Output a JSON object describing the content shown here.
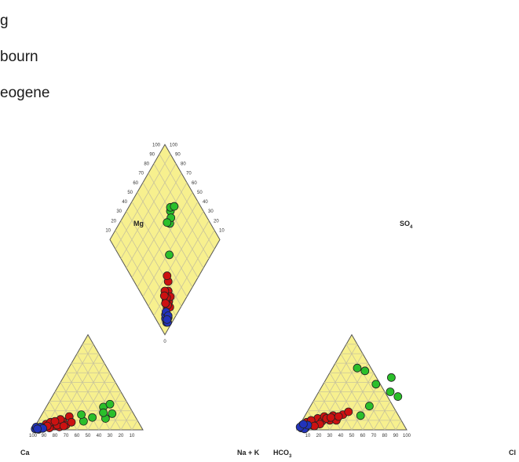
{
  "chart_data": {
    "type": "scatter",
    "legend": [
      "g",
      "bourn",
      "eogene"
    ],
    "colors": {
      "green": "#2bbf2b",
      "red": "#cc1111",
      "blue": "#2233bb",
      "field": "#f7f08e",
      "grid": "#c9c49b"
    },
    "ticks": [
      "10",
      "20",
      "30",
      "40",
      "50",
      "60",
      "70",
      "80",
      "90",
      "100"
    ],
    "zero": "0",
    "axis_labels": {
      "mg": "Mg",
      "so4": "SO",
      "so4_sub": "4",
      "ca": "Ca",
      "nak": "Na + K",
      "hco3": "HCO",
      "hco3_sub": "3",
      "cl": "Cl"
    },
    "cation_units": "Na+K %, Mg %",
    "cation": {
      "green": [
        [
          64,
          24
        ],
        [
          72,
          17
        ],
        [
          66,
          12
        ],
        [
          54,
          13
        ],
        [
          46,
          9
        ],
        [
          64,
          18
        ],
        [
          44,
          16
        ],
        [
          70,
          27
        ]
      ],
      "red": [
        [
          10,
          3
        ],
        [
          14,
          5
        ],
        [
          17,
          6
        ],
        [
          19,
          4
        ],
        [
          21,
          7
        ],
        [
          24,
          3
        ],
        [
          27,
          9
        ],
        [
          30,
          5
        ],
        [
          33,
          14
        ],
        [
          12,
          6
        ],
        [
          15,
          2
        ],
        [
          22,
          5
        ],
        [
          25,
          11
        ],
        [
          28,
          4
        ],
        [
          16,
          8
        ],
        [
          35,
          8
        ],
        [
          20,
          9
        ],
        [
          13,
          4
        ]
      ],
      "blue": [
        [
          2,
          1
        ],
        [
          4,
          2
        ],
        [
          6,
          1.5
        ],
        [
          8,
          2.5
        ],
        [
          3,
          3
        ],
        [
          5,
          0.5
        ],
        [
          7,
          3
        ],
        [
          9,
          1.5
        ],
        [
          4,
          1
        ]
      ]
    },
    "anion_units": "Cl %, SO4 %",
    "anion": {
      "green": [
        [
          92,
          35
        ],
        [
          85,
          40
        ],
        [
          72,
          48
        ],
        [
          62,
          62
        ],
        [
          55,
          65
        ],
        [
          66,
          25
        ],
        [
          58,
          15
        ],
        [
          86,
          55
        ]
      ],
      "red": [
        [
          8,
          4
        ],
        [
          11,
          6
        ],
        [
          14,
          5
        ],
        [
          17,
          8
        ],
        [
          19,
          12
        ],
        [
          23,
          9
        ],
        [
          25,
          14
        ],
        [
          30,
          10
        ],
        [
          33,
          15
        ],
        [
          36,
          10
        ],
        [
          42,
          16
        ],
        [
          9,
          8
        ],
        [
          13,
          10
        ],
        [
          21,
          6
        ],
        [
          27,
          12
        ],
        [
          47,
          19
        ],
        [
          16,
          4
        ],
        [
          31,
          13
        ],
        [
          38,
          14
        ]
      ],
      "blue": [
        [
          4,
          2
        ],
        [
          6,
          3
        ],
        [
          8,
          2
        ],
        [
          5,
          5
        ],
        [
          9,
          4
        ],
        [
          7,
          1
        ],
        [
          3,
          3
        ],
        [
          10,
          5
        ],
        [
          6,
          6
        ]
      ]
    },
    "diamond_units": "SO4+Cl %, Na+K %",
    "diamond": {
      "green": [
        [
          60,
          70
        ],
        [
          62,
          72
        ],
        [
          54,
          63
        ],
        [
          56,
          67
        ],
        [
          57,
          61
        ],
        [
          38,
          46
        ],
        [
          59,
          76
        ]
      ],
      "red": [
        [
          12,
          16
        ],
        [
          14,
          21
        ],
        [
          17,
          19
        ],
        [
          19,
          23
        ],
        [
          20,
          26
        ],
        [
          23,
          23
        ],
        [
          25,
          31
        ],
        [
          10,
          19
        ],
        [
          15,
          25
        ],
        [
          18,
          21
        ],
        [
          21,
          20
        ],
        [
          13,
          18
        ],
        [
          29,
          33
        ],
        [
          16,
          17
        ]
      ],
      "blue": [
        [
          5,
          8
        ],
        [
          7,
          10
        ],
        [
          9,
          12
        ],
        [
          6,
          12
        ],
        [
          8,
          9
        ],
        [
          10,
          11
        ],
        [
          4,
          9
        ],
        [
          11,
          13
        ],
        [
          7,
          13
        ],
        [
          6,
          10
        ]
      ]
    }
  }
}
